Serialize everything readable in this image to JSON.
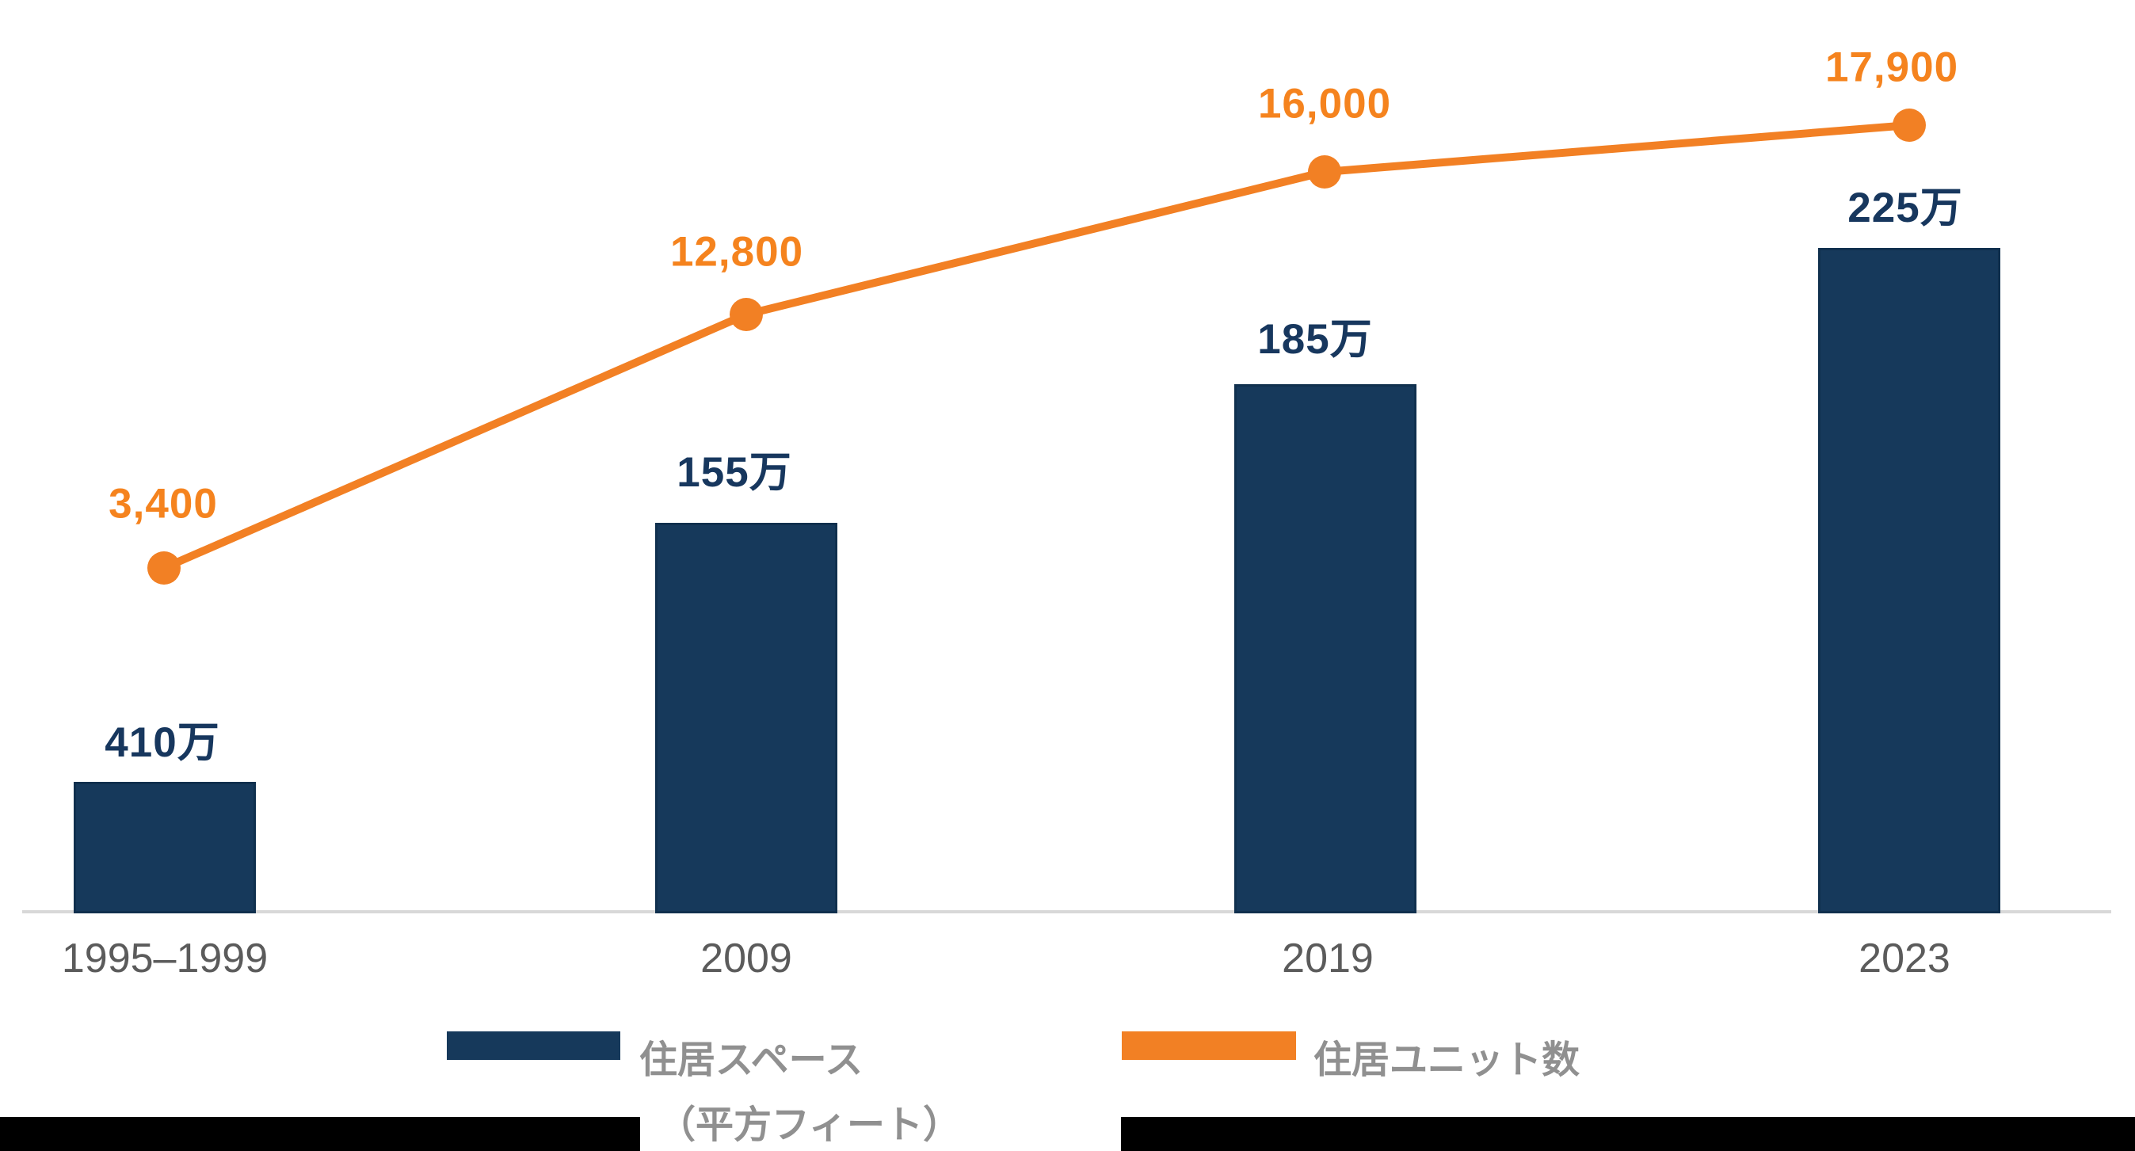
{
  "chart_data": {
    "type": "combo",
    "categories": [
      "1995–1999",
      "2009",
      "2019",
      "2023"
    ],
    "series": [
      {
        "name": "住居スペース（平方フィート）",
        "type": "bar",
        "unit": "万",
        "values": [
          410,
          155,
          185,
          225
        ],
        "labels": [
          "410万",
          "155万",
          "185万",
          "225万"
        ],
        "color": "#16395b"
      },
      {
        "name": "住居ユニット数",
        "type": "line",
        "values": [
          3400,
          12800,
          16000,
          17900
        ],
        "labels": [
          "3,400",
          "12,800",
          "16,000",
          "17,900"
        ],
        "color": "#f28024"
      }
    ],
    "title": "",
    "xlabel": "",
    "ylabel": "",
    "grid": false,
    "legend_position": "bottom"
  },
  "legend": {
    "bar_label_line1": "住居スペース",
    "bar_label_line2": "（平方フィート）",
    "line_label": "住居ユニット数"
  },
  "colors": {
    "bar_fill": "#16395b",
    "bar_border": "#10304e",
    "bar_label_text": "#17375e",
    "line_stroke": "#f28024",
    "line_label_text": "#f5831e",
    "axis_line": "#d8d8d8",
    "x_label_text": "#5b5b5b",
    "legend_text": "#909090",
    "bottom_strip": "#000000",
    "notch": "#ffffff"
  }
}
